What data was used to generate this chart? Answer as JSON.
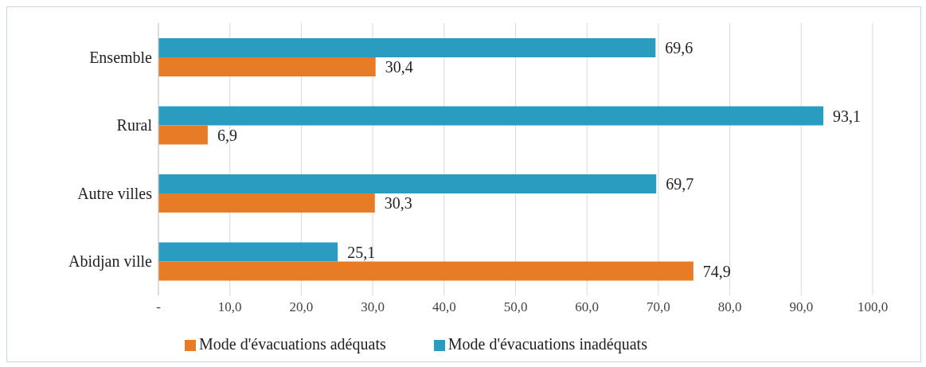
{
  "chart_data": {
    "type": "bar",
    "orientation": "horizontal",
    "categories": [
      "Ensemble",
      "Rural",
      "Autre villes",
      "Abidjan ville"
    ],
    "series": [
      {
        "name": "Mode d'évacuations inadéquats",
        "color": "#2a9cbf",
        "values": [
          69.6,
          93.1,
          69.7,
          25.1
        ],
        "value_labels": [
          "69,6",
          "93,1",
          "69,7",
          "25,1"
        ]
      },
      {
        "name": "Mode d'évacuations adéquats",
        "color": "#e87b25",
        "values": [
          30.4,
          6.9,
          30.3,
          74.9
        ],
        "value_labels": [
          "30,4",
          "6,9",
          "30,3",
          "74,9"
        ]
      }
    ],
    "xlim": [
      0,
      100
    ],
    "xticks": [
      {
        "value": 0,
        "label": "-"
      },
      {
        "value": 10,
        "label": "10,0"
      },
      {
        "value": 20,
        "label": "20,0"
      },
      {
        "value": 30,
        "label": "30,0"
      },
      {
        "value": 40,
        "label": "40,0"
      },
      {
        "value": 50,
        "label": "50,0"
      },
      {
        "value": 60,
        "label": "60,0"
      },
      {
        "value": 70,
        "label": "70,0"
      },
      {
        "value": 80,
        "label": "80,0"
      },
      {
        "value": 90,
        "label": "90,0"
      },
      {
        "value": 100,
        "label": "100,0"
      }
    ],
    "grid": "x",
    "legend": "bottom"
  }
}
